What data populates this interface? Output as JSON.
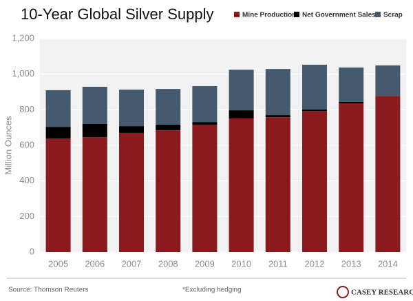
{
  "chart_data": {
    "type": "stacked_bar",
    "title": "10-Year Global Silver Supply",
    "y_label": "Million Ounces",
    "categories": [
      "2005",
      "2006",
      "2007",
      "2008",
      "2009",
      "2010",
      "2011",
      "2012",
      "2013",
      "2014"
    ],
    "series": [
      {
        "name": "Mine Production*",
        "color": "#8b1a1f",
        "values": [
          639,
          646,
          670,
          685,
          716,
          751,
          758,
          793,
          836,
          878
        ]
      },
      {
        "name": "Net Government Sales",
        "color": "#000000",
        "values": [
          65,
          74,
          38,
          31,
          15,
          46,
          12,
          8,
          8,
          0
        ]
      },
      {
        "name": "Scrap",
        "color": "#45596f",
        "values": [
          206,
          209,
          205,
          201,
          202,
          228,
          259,
          252,
          193,
          171
        ]
      }
    ],
    "ylim": [
      0,
      1200
    ],
    "yticks": [
      0,
      200,
      400,
      600,
      800,
      {
        "value": 1000,
        "label": "1,000"
      },
      {
        "value": 1200,
        "label": "1,200"
      }
    ],
    "grid": true,
    "legend": "top-right",
    "source": "Source: Thomson Reuters",
    "note": "*Excluding hedging",
    "logo": "CASEY RESEARCH"
  }
}
